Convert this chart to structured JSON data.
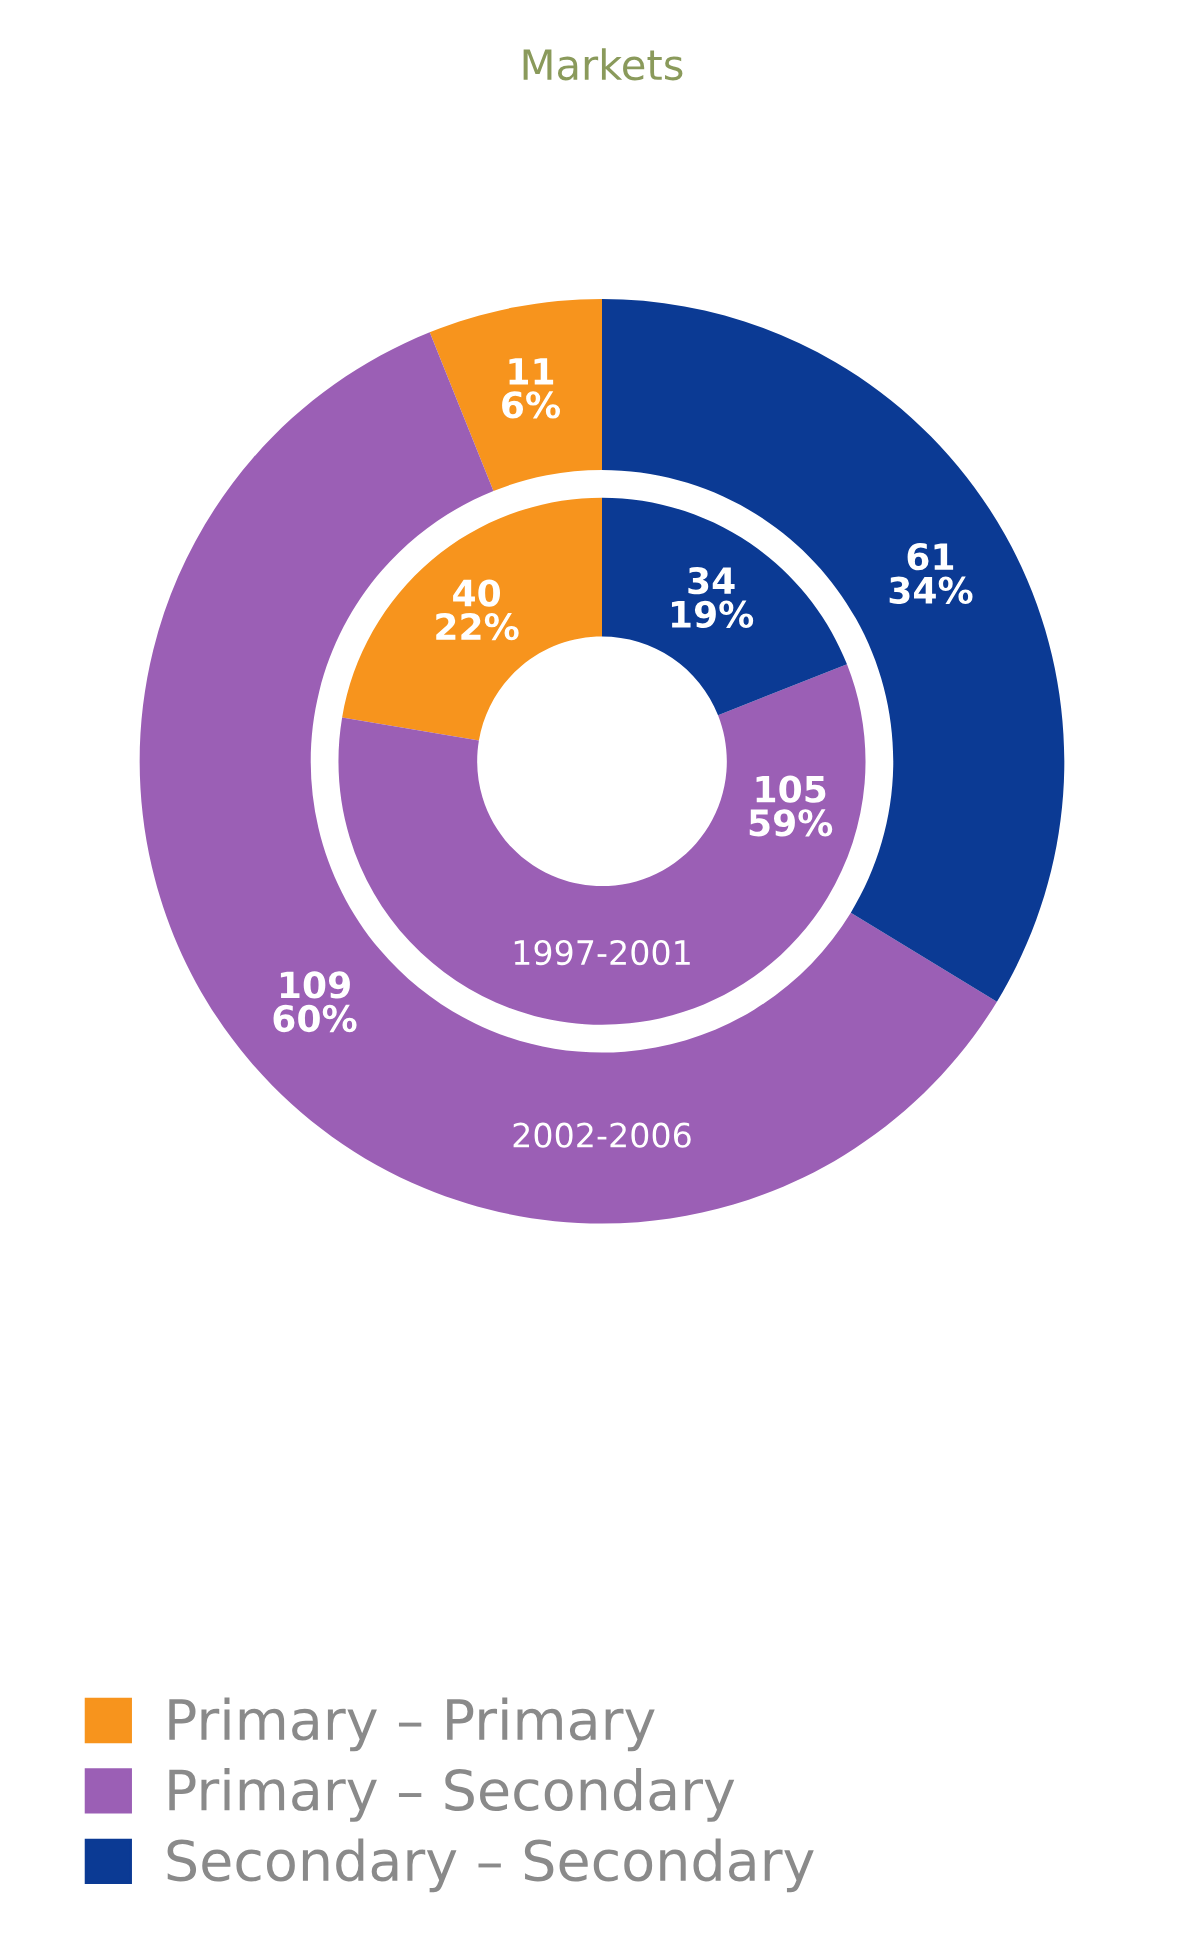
{
  "chart_data": {
    "type": "donut",
    "title": "Markets",
    "categories": [
      "Primary – Primary",
      "Primary – Secondary",
      "Secondary – Secondary"
    ],
    "colors": [
      "#f7941d",
      "#9b5fb5",
      "#0b3a94"
    ],
    "legend": "bottom",
    "series": [
      {
        "name": "2002-2006",
        "values": [
          11,
          109,
          61
        ],
        "value_labels": [
          "11\n6%",
          "109\n60%",
          "61\n34%"
        ]
      },
      {
        "name": "1997-2001",
        "values": [
          40,
          105,
          34
        ],
        "value_labels": [
          "40\n22%",
          "105\n59%",
          "34\n19%"
        ]
      }
    ]
  }
}
